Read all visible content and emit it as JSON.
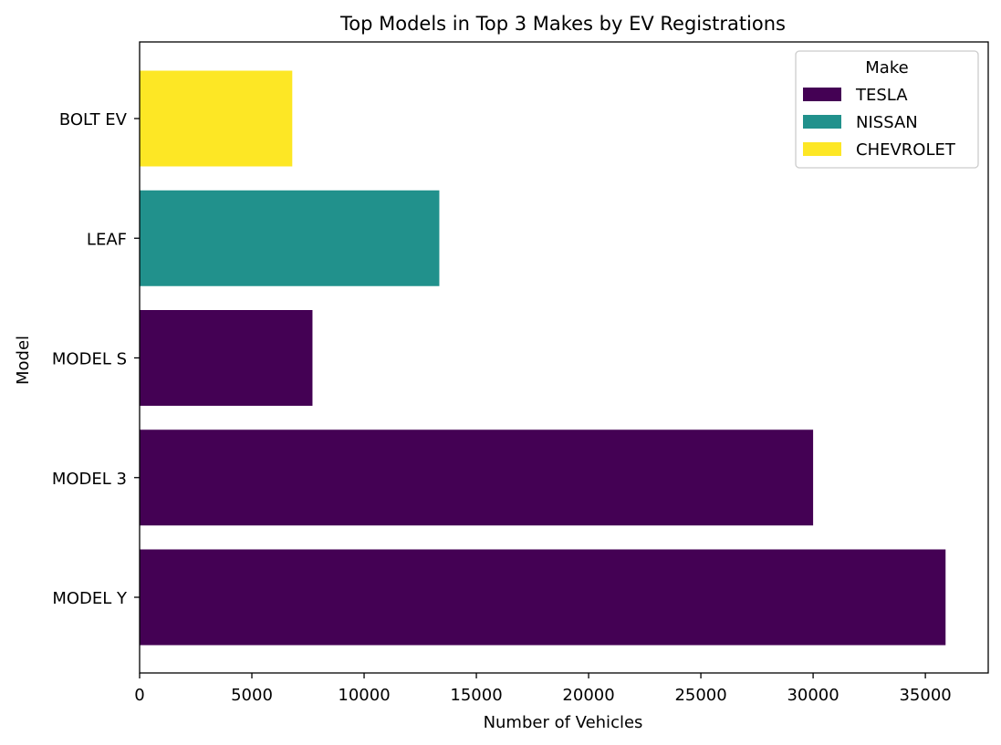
{
  "chart_data": {
    "type": "bar",
    "orientation": "horizontal",
    "title": "Top Models in Top 3 Makes by EV Registrations",
    "xlabel": "Number of Vehicles",
    "ylabel": "Model",
    "categories": [
      "MODEL Y",
      "MODEL 3",
      "MODEL S",
      "LEAF",
      "BOLT EV"
    ],
    "values": [
      35900,
      30000,
      7700,
      13350,
      6800
    ],
    "makes": [
      "TESLA",
      "TESLA",
      "TESLA",
      "NISSAN",
      "CHEVROLET"
    ],
    "xlim": [
      0,
      37800
    ],
    "xticks": [
      0,
      5000,
      10000,
      15000,
      20000,
      25000,
      30000,
      35000
    ],
    "grid": false,
    "legend": {
      "title": "Make",
      "placement": "top-right",
      "entries": [
        {
          "label": "TESLA",
          "color": "#440154"
        },
        {
          "label": "NISSAN",
          "color": "#21918c"
        },
        {
          "label": "CHEVROLET",
          "color": "#fde725"
        }
      ]
    }
  }
}
